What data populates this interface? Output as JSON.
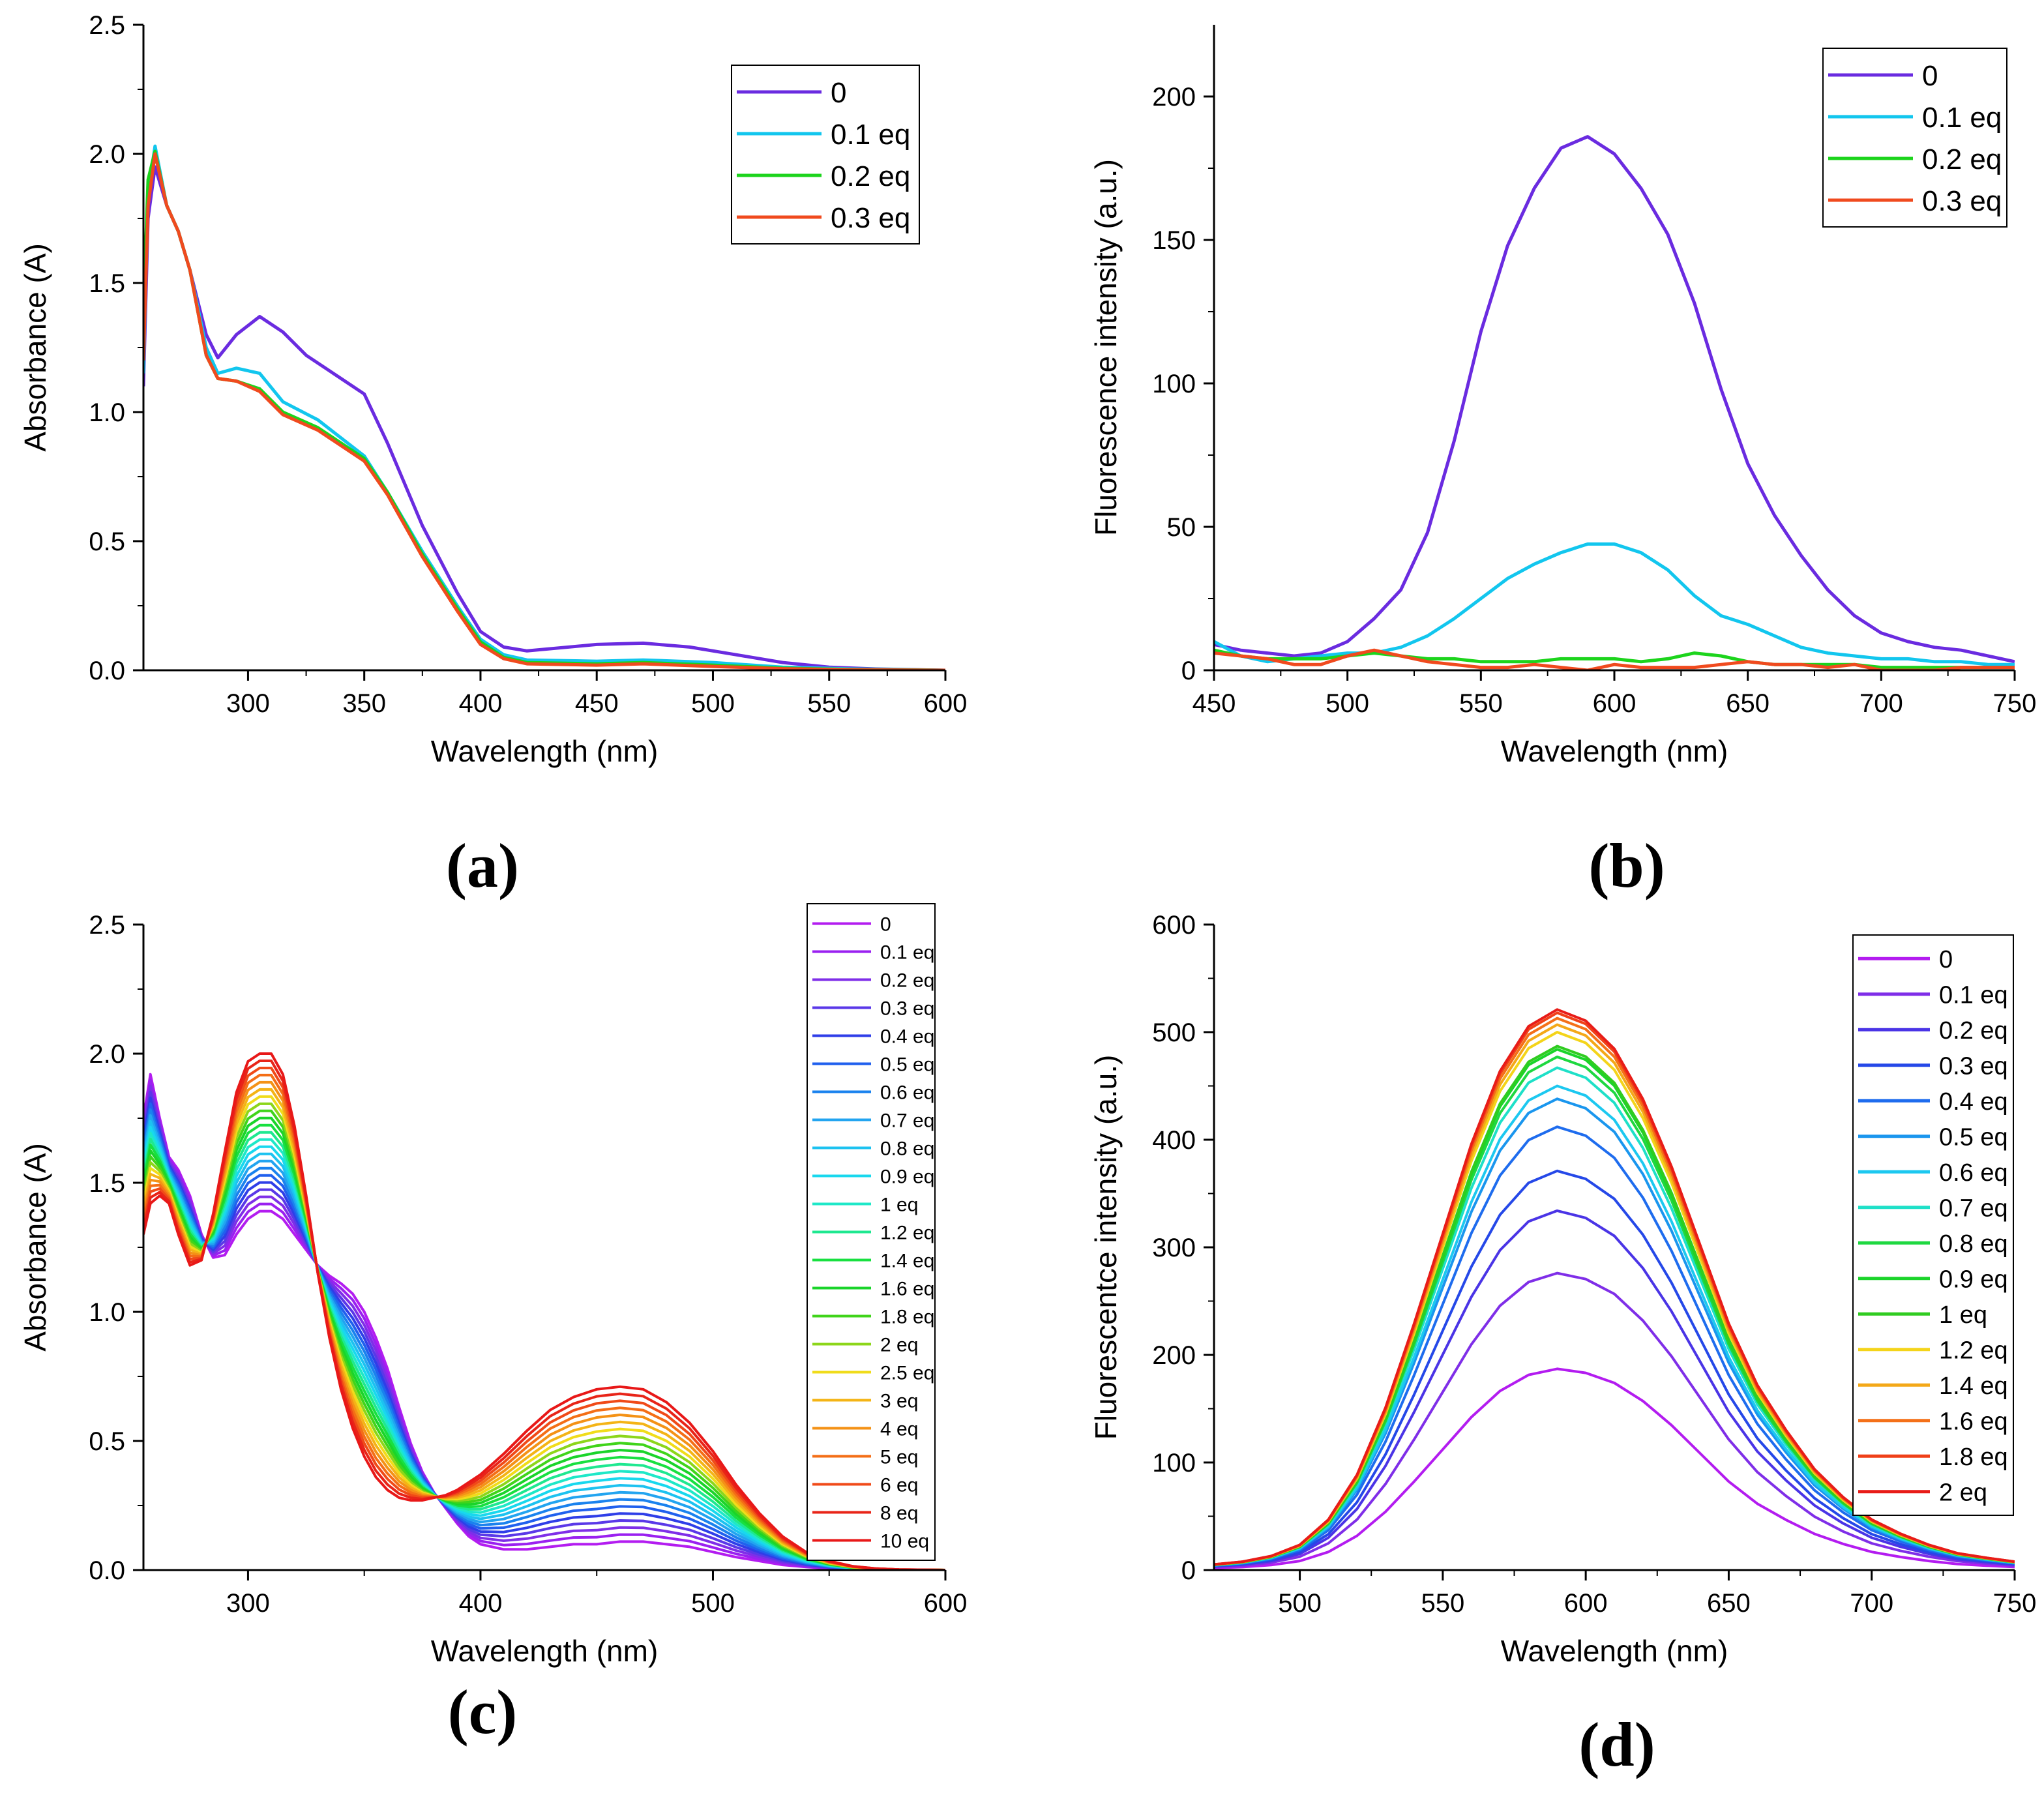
{
  "chart_data": [
    {
      "type": "line",
      "panel_label": "(a)",
      "xlabel": "Wavelength (nm)",
      "ylabel": "Absorbance (A)",
      "xlim": [
        255,
        600
      ],
      "ylim": [
        0,
        2.5
      ],
      "x_ticks": [
        300,
        350,
        400,
        450,
        500,
        550,
        600
      ],
      "y_ticks": [
        0.0,
        0.5,
        1.0,
        1.5,
        2.0,
        2.5
      ],
      "y_tick_labels": [
        "0.0",
        "0.5",
        "1.0",
        "1.5",
        "2.0",
        "2.5"
      ],
      "legend_position": "top-right",
      "grid": false,
      "series": [
        {
          "name": "0",
          "color": "#6a2be0",
          "x": [
            255,
            257,
            260,
            265,
            270,
            275,
            282,
            287,
            295,
            305,
            315,
            325,
            340,
            350,
            360,
            375,
            390,
            400,
            410,
            420,
            450,
            470,
            490,
            510,
            530,
            550,
            570,
            600
          ],
          "y": [
            1.1,
            1.75,
            1.95,
            1.8,
            1.7,
            1.55,
            1.3,
            1.21,
            1.3,
            1.37,
            1.31,
            1.22,
            1.13,
            1.07,
            0.88,
            0.56,
            0.3,
            0.15,
            0.09,
            0.075,
            0.1,
            0.105,
            0.09,
            0.06,
            0.03,
            0.012,
            0.005,
            0.0
          ]
        },
        {
          "name": "0.1 eq",
          "color": "#12c6ee",
          "x": [
            255,
            257,
            260,
            265,
            270,
            275,
            282,
            287,
            295,
            305,
            315,
            330,
            350,
            360,
            375,
            390,
            400,
            410,
            420,
            450,
            470,
            500,
            530,
            560,
            600
          ],
          "y": [
            1.15,
            1.85,
            2.03,
            1.8,
            1.7,
            1.55,
            1.25,
            1.15,
            1.17,
            1.15,
            1.04,
            0.97,
            0.83,
            0.69,
            0.46,
            0.25,
            0.12,
            0.06,
            0.04,
            0.035,
            0.04,
            0.03,
            0.012,
            0.005,
            0.0
          ]
        },
        {
          "name": "0.2 eq",
          "color": "#1cd41c",
          "x": [
            255,
            257,
            260,
            265,
            270,
            275,
            282,
            287,
            295,
            305,
            315,
            330,
            350,
            360,
            375,
            390,
            400,
            410,
            420,
            450,
            470,
            500,
            530,
            560,
            600
          ],
          "y": [
            1.4,
            1.9,
            2.01,
            1.8,
            1.7,
            1.55,
            1.22,
            1.13,
            1.12,
            1.09,
            1.0,
            0.94,
            0.82,
            0.69,
            0.45,
            0.24,
            0.11,
            0.05,
            0.03,
            0.025,
            0.03,
            0.02,
            0.008,
            0.003,
            0.0
          ]
        },
        {
          "name": "0.3 eq",
          "color": "#f04a1e",
          "x": [
            255,
            257,
            260,
            265,
            270,
            275,
            282,
            287,
            295,
            305,
            315,
            330,
            350,
            360,
            375,
            390,
            400,
            410,
            420,
            450,
            470,
            500,
            530,
            560,
            600
          ],
          "y": [
            1.2,
            1.8,
            2.0,
            1.8,
            1.7,
            1.55,
            1.22,
            1.13,
            1.12,
            1.08,
            0.99,
            0.93,
            0.81,
            0.68,
            0.44,
            0.23,
            0.1,
            0.045,
            0.025,
            0.02,
            0.025,
            0.015,
            0.006,
            0.002,
            0.0
          ]
        }
      ]
    },
    {
      "type": "line",
      "panel_label": "(b)",
      "xlabel": "Wavelength (nm)",
      "ylabel": "Fluorescence intensity (a.u.)",
      "xlim": [
        450,
        750
      ],
      "ylim": [
        0,
        225
      ],
      "x_ticks": [
        450,
        500,
        550,
        600,
        650,
        700,
        750
      ],
      "y_ticks": [
        0,
        50,
        100,
        150,
        200
      ],
      "y_tick_labels": [
        "0",
        "50",
        "100",
        "150",
        "200"
      ],
      "legend_position": "top-right",
      "grid": false,
      "series": [
        {
          "name": "0",
          "color": "#6a2be0",
          "x": [
            450,
            460,
            470,
            480,
            490,
            500,
            510,
            520,
            530,
            540,
            550,
            560,
            570,
            580,
            590,
            600,
            610,
            620,
            630,
            640,
            650,
            660,
            670,
            680,
            690,
            700,
            710,
            720,
            730,
            740,
            750
          ],
          "y": [
            9,
            7,
            6,
            5,
            6,
            10,
            18,
            28,
            48,
            80,
            118,
            148,
            168,
            182,
            186,
            180,
            168,
            152,
            128,
            98,
            72,
            54,
            40,
            28,
            19,
            13,
            10,
            8,
            7,
            5,
            3
          ]
        },
        {
          "name": "0.1 eq",
          "color": "#12c6ee",
          "x": [
            450,
            460,
            470,
            480,
            490,
            500,
            510,
            520,
            530,
            540,
            550,
            560,
            570,
            580,
            590,
            600,
            610,
            620,
            630,
            640,
            650,
            660,
            670,
            680,
            690,
            700,
            710,
            720,
            730,
            740,
            750
          ],
          "y": [
            10,
            5,
            3,
            4,
            5,
            6,
            6,
            8,
            12,
            18,
            25,
            32,
            37,
            41,
            44,
            44,
            41,
            35,
            26,
            19,
            16,
            12,
            8,
            6,
            5,
            4,
            4,
            3,
            3,
            2,
            2
          ]
        },
        {
          "name": "0.2 eq",
          "color": "#1cd41c",
          "x": [
            450,
            460,
            470,
            480,
            490,
            500,
            510,
            520,
            530,
            540,
            550,
            560,
            570,
            580,
            590,
            600,
            610,
            620,
            630,
            640,
            650,
            660,
            670,
            680,
            690,
            700,
            710,
            720,
            730,
            740,
            750
          ],
          "y": [
            7,
            5,
            4,
            4,
            4,
            5,
            6,
            5,
            4,
            4,
            3,
            3,
            3,
            4,
            4,
            4,
            3,
            4,
            6,
            5,
            3,
            2,
            2,
            2,
            2,
            1,
            1,
            1,
            1,
            1,
            1
          ]
        },
        {
          "name": "0.3 eq",
          "color": "#f04a1e",
          "x": [
            450,
            460,
            470,
            480,
            490,
            500,
            510,
            520,
            530,
            540,
            550,
            560,
            570,
            580,
            590,
            600,
            610,
            620,
            630,
            640,
            650,
            660,
            670,
            680,
            690,
            700,
            710,
            720,
            730,
            740,
            750
          ],
          "y": [
            6,
            5,
            4,
            2,
            2,
            5,
            7,
            5,
            3,
            2,
            1,
            1,
            2,
            1,
            0,
            2,
            1,
            1,
            1,
            2,
            3,
            2,
            2,
            1,
            2,
            0,
            0,
            0,
            1,
            1,
            1
          ]
        }
      ]
    },
    {
      "type": "line",
      "panel_label": "(c)",
      "xlabel": "Wavelength (nm)",
      "ylabel": "Absorbance (A)",
      "xlim": [
        255,
        600
      ],
      "ylim": [
        0,
        2.5
      ],
      "x_ticks": [
        300,
        400,
        500,
        600
      ],
      "y_ticks": [
        0.0,
        0.5,
        1.0,
        1.5,
        2.0,
        2.5
      ],
      "y_tick_labels": [
        "0.0",
        "0.5",
        "1.0",
        "1.5",
        "2.0",
        "2.5"
      ],
      "legend_position": "top-right",
      "grid": false,
      "x": [
        255,
        258,
        262,
        266,
        270,
        275,
        280,
        285,
        290,
        295,
        300,
        305,
        310,
        315,
        320,
        325,
        330,
        335,
        340,
        345,
        350,
        355,
        360,
        365,
        370,
        375,
        380,
        385,
        390,
        395,
        400,
        410,
        420,
        430,
        440,
        450,
        460,
        470,
        480,
        490,
        500,
        510,
        520,
        530,
        540,
        550,
        560,
        570,
        580,
        600
      ],
      "series": [
        {
          "name": "0",
          "color": "#b31cf0"
        },
        {
          "name": "0.1 eq",
          "color": "#9a20f0"
        },
        {
          "name": "0.2 eq",
          "color": "#7f2ee8"
        },
        {
          "name": "0.3 eq",
          "color": "#5a38e8"
        },
        {
          "name": "0.4 eq",
          "color": "#2f3ee8"
        },
        {
          "name": "0.5 eq",
          "color": "#2060ee"
        },
        {
          "name": "0.6 eq",
          "color": "#1a82ee"
        },
        {
          "name": "0.7 eq",
          "color": "#22a4f0"
        },
        {
          "name": "0.8 eq",
          "color": "#1cc2f0"
        },
        {
          "name": "0.9 eq",
          "color": "#18d8ee"
        },
        {
          "name": "1 eq",
          "color": "#1ee8c8"
        },
        {
          "name": "1.2 eq",
          "color": "#1ee890"
        },
        {
          "name": "1.4 eq",
          "color": "#18e040"
        },
        {
          "name": "1.6 eq",
          "color": "#1ad42a"
        },
        {
          "name": "1.8 eq",
          "color": "#40d41a"
        },
        {
          "name": "2 eq",
          "color": "#8cd61a"
        },
        {
          "name": "2.5 eq",
          "color": "#f0dc1a"
        },
        {
          "name": "3 eq",
          "color": "#f4b416"
        },
        {
          "name": "4 eq",
          "color": "#f49216"
        },
        {
          "name": "5 eq",
          "color": "#f46e16"
        },
        {
          "name": "6 eq",
          "color": "#f04a18"
        },
        {
          "name": "8 eq",
          "color": "#e82418"
        },
        {
          "name": "10 eq",
          "color": "#e81818"
        }
      ],
      "endpoint_curves": {
        "first_series_values": [
          1.75,
          1.92,
          1.75,
          1.6,
          1.55,
          1.45,
          1.3,
          1.21,
          1.22,
          1.3,
          1.36,
          1.39,
          1.39,
          1.36,
          1.3,
          1.24,
          1.18,
          1.14,
          1.11,
          1.07,
          1.0,
          0.9,
          0.78,
          0.63,
          0.49,
          0.38,
          0.3,
          0.24,
          0.18,
          0.13,
          0.1,
          0.08,
          0.08,
          0.09,
          0.1,
          0.1,
          0.11,
          0.11,
          0.1,
          0.09,
          0.07,
          0.05,
          0.035,
          0.02,
          0.012,
          0.006,
          0.003,
          0.001,
          0.0,
          0.0
        ],
        "last_series_values": [
          1.3,
          1.42,
          1.45,
          1.42,
          1.3,
          1.18,
          1.2,
          1.38,
          1.62,
          1.85,
          1.97,
          2.0,
          2.0,
          1.92,
          1.72,
          1.45,
          1.15,
          0.9,
          0.7,
          0.55,
          0.44,
          0.36,
          0.31,
          0.28,
          0.27,
          0.27,
          0.28,
          0.29,
          0.31,
          0.34,
          0.37,
          0.45,
          0.54,
          0.62,
          0.67,
          0.7,
          0.71,
          0.7,
          0.65,
          0.57,
          0.46,
          0.33,
          0.22,
          0.13,
          0.07,
          0.035,
          0.015,
          0.006,
          0.002,
          0.0
        ],
        "note": "intermediate series interpolate between the first and last curves"
      }
    },
    {
      "type": "line",
      "panel_label": "(d)",
      "xlabel": "Wavelength (nm)",
      "ylabel": "Fluorescentce intensity (a.u.)",
      "xlim": [
        470,
        750
      ],
      "ylim": [
        0,
        600
      ],
      "x_ticks": [
        500,
        550,
        600,
        650,
        700,
        750
      ],
      "y_ticks": [
        0,
        100,
        200,
        300,
        400,
        500,
        600
      ],
      "y_tick_labels": [
        "0",
        "100",
        "200",
        "300",
        "400",
        "500",
        "600"
      ],
      "legend_position": "top-right",
      "grid": false,
      "x": [
        470,
        480,
        490,
        500,
        510,
        520,
        530,
        540,
        550,
        560,
        570,
        580,
        590,
        600,
        610,
        620,
        630,
        640,
        650,
        660,
        670,
        680,
        690,
        700,
        710,
        720,
        730,
        740,
        750
      ],
      "shape": [
        0.01,
        0.015,
        0.025,
        0.045,
        0.09,
        0.17,
        0.29,
        0.44,
        0.6,
        0.76,
        0.89,
        0.97,
        1.0,
        0.98,
        0.93,
        0.84,
        0.72,
        0.58,
        0.44,
        0.33,
        0.25,
        0.18,
        0.13,
        0.09,
        0.065,
        0.045,
        0.03,
        0.022,
        0.015
      ],
      "series": [
        {
          "name": "0",
          "color": "#b31cf0",
          "peak": 187
        },
        {
          "name": "0.1 eq",
          "color": "#7f2ee8",
          "peak": 276
        },
        {
          "name": "0.2 eq",
          "color": "#4a34e6",
          "peak": 334
        },
        {
          "name": "0.3 eq",
          "color": "#2548e8",
          "peak": 371
        },
        {
          "name": "0.4 eq",
          "color": "#1e6cee",
          "peak": 412
        },
        {
          "name": "0.5 eq",
          "color": "#1a96ee",
          "peak": 438
        },
        {
          "name": "0.6 eq",
          "color": "#1cc8f0",
          "peak": 450
        },
        {
          "name": "0.7 eq",
          "color": "#1ee0c8",
          "peak": 467
        },
        {
          "name": "0.8 eq",
          "color": "#1ed840",
          "peak": 477
        },
        {
          "name": "0.9 eq",
          "color": "#1ad42a",
          "peak": 484
        },
        {
          "name": "1 eq",
          "color": "#30cc20",
          "peak": 487
        },
        {
          "name": "1.2 eq",
          "color": "#f4d41a",
          "peak": 500
        },
        {
          "name": "1.4 eq",
          "color": "#f4a818",
          "peak": 507
        },
        {
          "name": "1.6 eq",
          "color": "#f47018",
          "peak": 513
        },
        {
          "name": "1.8 eq",
          "color": "#f04018",
          "peak": 518
        },
        {
          "name": "2 eq",
          "color": "#e81c18",
          "peak": 521
        }
      ]
    }
  ]
}
